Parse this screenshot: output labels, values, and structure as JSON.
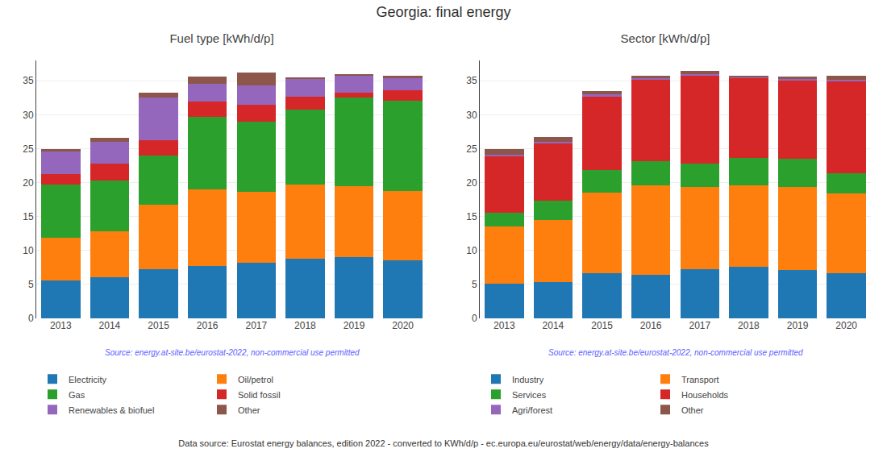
{
  "title": "Georgia: final energy",
  "annotations": [
    "Data source: Eurostat energy balances, edition 2022 - converted to KWh/d/p - ec.europa.eu/eurostat/web/energy/data/energy-balances"
  ],
  "chart_data": [
    {
      "type": "bar",
      "title": "Fuel type [kWh/d/p]",
      "stacked": true,
      "grid": true,
      "legend": "bottom",
      "categories": [
        2013,
        2014,
        2015,
        2016,
        2017,
        2018,
        2019,
        2020
      ],
      "series": [
        {
          "name": "Electricity",
          "color": "#1f77b4",
          "values": [
            5.6,
            6.0,
            7.3,
            7.7,
            8.2,
            8.8,
            9.0,
            8.5
          ]
        },
        {
          "name": "Oil/petrol",
          "color": "#ff7f0e",
          "values": [
            6.3,
            6.8,
            9.4,
            11.3,
            10.4,
            10.9,
            10.5,
            10.3
          ]
        },
        {
          "name": "Gas",
          "color": "#2ca02c",
          "values": [
            7.8,
            7.5,
            7.3,
            10.7,
            10.4,
            11.0,
            13.0,
            13.3
          ]
        },
        {
          "name": "Solid fossil",
          "color": "#d62728",
          "values": [
            1.5,
            2.5,
            2.2,
            2.3,
            2.5,
            2.0,
            0.8,
            1.5
          ]
        },
        {
          "name": "Renewables & biofuel",
          "color": "#9467bd",
          "values": [
            3.4,
            3.2,
            6.3,
            2.5,
            2.8,
            2.6,
            2.5,
            1.8
          ]
        },
        {
          "name": "Other",
          "color": "#8c564b",
          "values": [
            0.3,
            0.6,
            0.8,
            1.1,
            1.9,
            0.2,
            0.2,
            0.3
          ]
        }
      ],
      "ylim": [
        0,
        38
      ],
      "yticks": [
        0,
        5,
        10,
        15,
        20,
        25,
        30,
        35
      ],
      "annotations": [
        {
          "text": "Source: energy.at-site.be/eurostat-2022, non-commercial use permitted",
          "color": "#6060ff"
        }
      ]
    },
    {
      "type": "bar",
      "title": "Sector [kWh/d/p]",
      "stacked": true,
      "grid": true,
      "legend": "bottom",
      "categories": [
        2013,
        2014,
        2015,
        2016,
        2017,
        2018,
        2019,
        2020
      ],
      "series": [
        {
          "name": "Industry",
          "color": "#1f77b4",
          "values": [
            5.1,
            5.4,
            6.6,
            6.4,
            7.3,
            7.6,
            7.1,
            6.6
          ]
        },
        {
          "name": "Transport",
          "color": "#ff7f0e",
          "values": [
            8.4,
            9.1,
            11.9,
            13.2,
            12.0,
            12.0,
            12.2,
            11.8
          ]
        },
        {
          "name": "Services",
          "color": "#2ca02c",
          "values": [
            2.1,
            2.8,
            3.4,
            3.5,
            3.5,
            4.0,
            4.2,
            3.0
          ]
        },
        {
          "name": "Households",
          "color": "#d62728",
          "values": [
            8.3,
            8.5,
            10.8,
            12.1,
            13.0,
            11.8,
            11.5,
            13.5
          ]
        },
        {
          "name": "Agri/forest",
          "color": "#9467bd",
          "values": [
            0.2,
            0.2,
            0.3,
            0.2,
            0.2,
            0.2,
            0.3,
            0.3
          ]
        },
        {
          "name": "Other",
          "color": "#8c564b",
          "values": [
            0.8,
            0.7,
            0.5,
            0.4,
            0.4,
            0.1,
            0.3,
            0.5
          ]
        }
      ],
      "ylim": [
        0,
        38
      ],
      "yticks": [
        0,
        5,
        10,
        15,
        20,
        25,
        30,
        35
      ],
      "annotations": [
        {
          "text": "Source: energy.at-site.be/eurostat-2022, non-commercial use permitted",
          "color": "#6060ff"
        }
      ]
    }
  ]
}
